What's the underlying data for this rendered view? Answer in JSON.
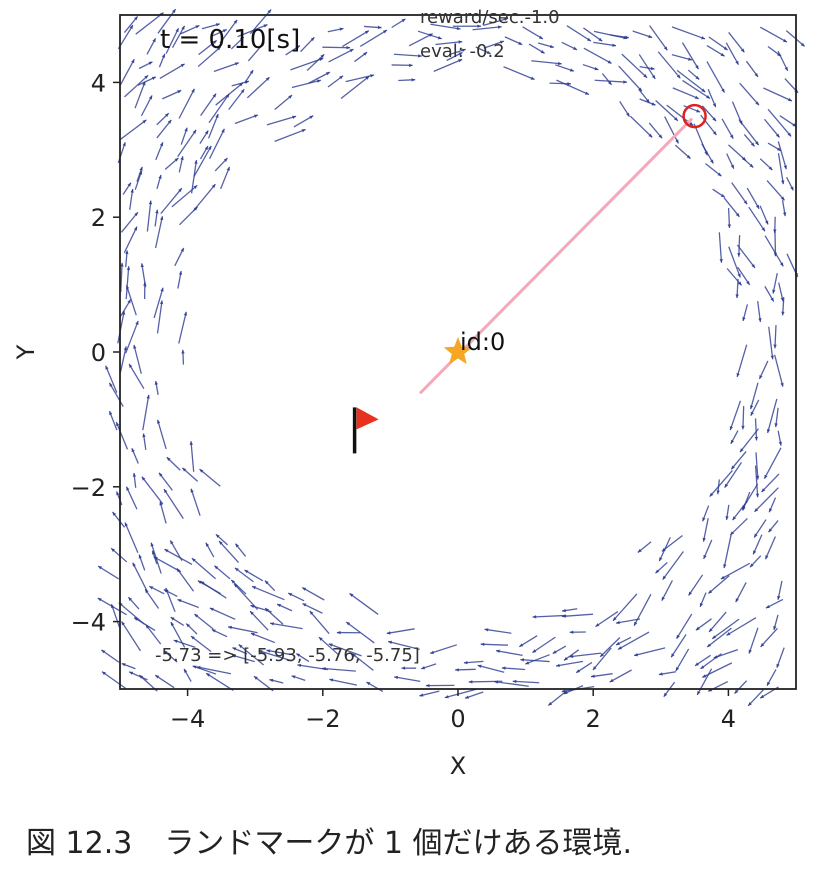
{
  "chart_data": {
    "type": "scatter",
    "xlabel": "X",
    "ylabel": "Y",
    "xlim": [
      -5,
      5
    ],
    "ylim": [
      -5,
      5
    ],
    "xticks": [
      -4,
      -2,
      0,
      2,
      4
    ],
    "yticks": [
      -4,
      -2,
      0,
      2,
      4
    ],
    "xtick_labels": [
      "−4",
      "−2",
      "0",
      "2",
      "4"
    ],
    "ytick_labels": [
      "−4",
      "−2",
      "0",
      "2",
      "4"
    ],
    "grid": false,
    "annotations": {
      "time": "t = 0.10[s]",
      "reward": "reward/sec.-1.0",
      "eval": "eval: -0.2",
      "values": "-5.73 => [-5.93, -5.76, -5.75]"
    },
    "landmark": {
      "label": "id:0",
      "x": 0,
      "y": 0,
      "marker": "star",
      "color": "#f5a623"
    },
    "goal": {
      "x": -1.5,
      "y": -1.0,
      "marker": "flag",
      "color": "#e8321e"
    },
    "robot": {
      "x": 3.5,
      "y": 3.5,
      "marker": "circle",
      "color": "#e02020"
    },
    "observation_line": {
      "from": [
        -0.55,
        -0.6
      ],
      "to": [
        3.45,
        3.45
      ],
      "color": "#f4a9b8"
    },
    "vector_field": {
      "color": "#2b3990",
      "description": "rotational flow field drawn outside radius ~4"
    }
  },
  "caption": {
    "figure": "図 12.3",
    "text": "ランドマークが 1 個だけある環境."
  }
}
